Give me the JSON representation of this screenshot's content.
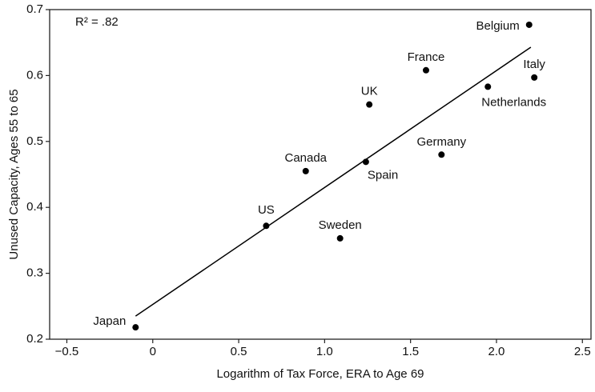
{
  "chart_data": {
    "type": "scatter",
    "x_label": "Logarithm of Tax Force, ERA to Age 69",
    "y_label": "Unused Capacity, Ages 55 to 65",
    "annotation": "R² = .82",
    "point_labels": [
      "Belgium",
      "Italy",
      "Netherlands",
      "France",
      "UK",
      "Germany",
      "Spain",
      "Canada",
      "US",
      "Sweden",
      "Japan"
    ],
    "x": [
      2.19,
      2.22,
      1.95,
      1.59,
      1.26,
      1.68,
      1.24,
      0.89,
      0.66,
      1.09,
      -0.1
    ],
    "y": [
      0.677,
      0.597,
      0.583,
      0.608,
      0.556,
      0.48,
      0.469,
      0.455,
      0.372,
      0.353,
      0.218
    ],
    "color": "#000000",
    "trend_line": {
      "x": [
        -0.1,
        2.2
      ],
      "y": [
        0.235,
        0.643
      ],
      "color": "#000000"
    },
    "xlim": [
      -0.6,
      2.55
    ],
    "ylim": [
      0.2,
      0.7
    ],
    "xticks": [
      {
        "value": -0.5,
        "label": "−0.5"
      },
      0,
      0.5,
      {
        "value": 1,
        "label": "1.0"
      },
      1.5,
      {
        "value": 2,
        "label": "2.0"
      },
      2.5
    ],
    "yticks": [
      0.2,
      0.3,
      0.4,
      0.5,
      0.6,
      0.7
    ],
    "grid": false
  }
}
